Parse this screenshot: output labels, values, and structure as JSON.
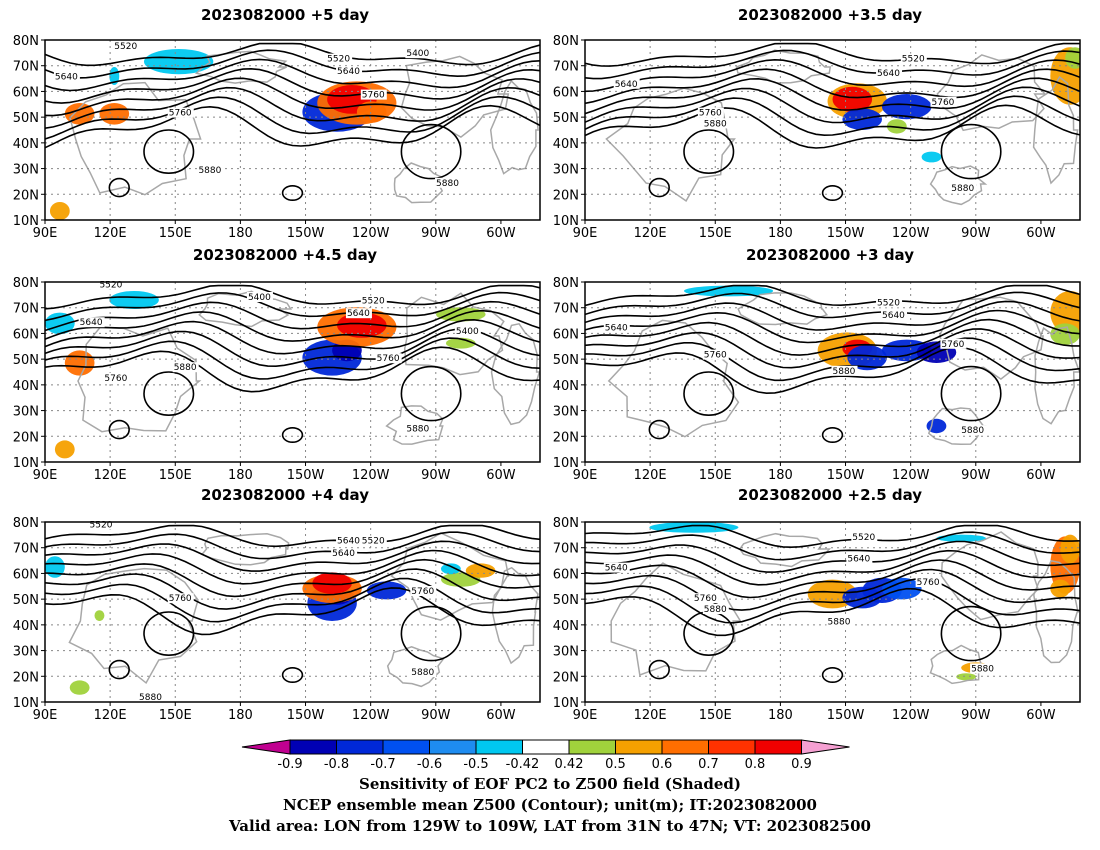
{
  "panels": [
    {
      "title": "2023082000  +5 day",
      "labels": [
        "5520",
        "5400",
        "5640",
        "5520",
        "5640",
        "5760",
        "5760",
        "5880",
        "5880"
      ]
    },
    {
      "title": "2023082000  +3.5 day",
      "labels": [
        "5640",
        "5520",
        "5640",
        "5760",
        "5760",
        "5880",
        "5880"
      ]
    },
    {
      "title": "2023082000  +4.5 day",
      "labels": [
        "5520",
        "5400",
        "5520",
        "5640",
        "5640",
        "5400",
        "5760",
        "5760",
        "5880",
        "5880"
      ]
    },
    {
      "title": "2023082000  +3 day",
      "labels": [
        "5640",
        "5520",
        "5640",
        "5760",
        "5760",
        "5880",
        "5880"
      ]
    },
    {
      "title": "2023082000  +4 day",
      "labels": [
        "5520",
        "5640",
        "5520",
        "5640",
        "5760",
        "5760",
        "5880",
        "5880"
      ]
    },
    {
      "title": "2023082000  +2.5 day",
      "labels": [
        "5640",
        "5520",
        "5640",
        "5760",
        "5760",
        "5880",
        "5880",
        "5880"
      ]
    }
  ],
  "axes": {
    "lat_ticks": [
      "80N",
      "70N",
      "60N",
      "50N",
      "40N",
      "30N",
      "20N",
      "10N"
    ],
    "lon_ticks": [
      "90E",
      "120E",
      "150E",
      "180",
      "150W",
      "120W",
      "90W",
      "60W"
    ]
  },
  "colorbar": {
    "ticks": [
      "-0.9",
      "-0.8",
      "-0.7",
      "-0.6",
      "-0.5",
      "-0.42",
      "0.42",
      "0.5",
      "0.6",
      "0.7",
      "0.8",
      "0.9"
    ],
    "colors": [
      "#c00090",
      "#0000b4",
      "#0028d8",
      "#0050f0",
      "#1e8cf0",
      "#00c8f0",
      "#ffffff",
      "#a0d23c",
      "#f5a000",
      "#ff6e00",
      "#ff3200",
      "#f00000",
      "#f5a0d2"
    ]
  },
  "footer": {
    "line1": "Sensitivity of EOF PC2 to Z500 field (Shaded)",
    "line2": "NCEP ensemble mean Z500 (Contour); unit(m); IT:2023082000",
    "line3": "Valid area: LON from 129W to 109W, LAT from 31N to 47N; VT: 2023082500"
  }
}
